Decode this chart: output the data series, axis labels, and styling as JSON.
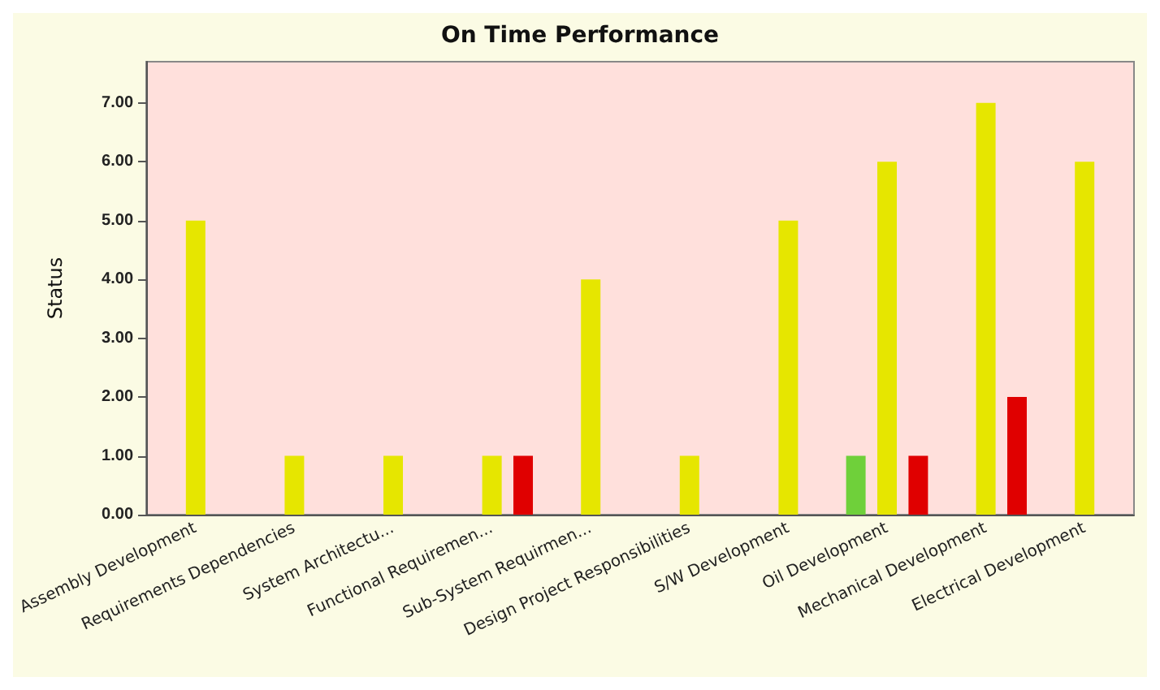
{
  "chart_data": {
    "type": "bar",
    "title": "On Time Performance",
    "ylabel": "Status",
    "categories": [
      "Assembly Development",
      "Requirements Dependencies",
      "System Architectu...",
      "Functional Requiremen...",
      "Sub-System Requirmen...",
      "Design Project Responsibilities",
      "S/W Development",
      "Oil Development",
      "Mechanical Development",
      "Electrical Development"
    ],
    "series": [
      {
        "color": "#6fd03a",
        "values": [
          null,
          null,
          null,
          null,
          null,
          null,
          null,
          1,
          null,
          null
        ]
      },
      {
        "color": "#e6e600",
        "values": [
          5,
          1,
          1,
          1,
          4,
          1,
          5,
          6,
          7,
          6
        ]
      },
      {
        "color": "#e00000",
        "values": [
          null,
          null,
          null,
          1,
          null,
          null,
          null,
          1,
          2,
          null
        ]
      }
    ],
    "ylim": [
      0,
      7.7
    ],
    "yticks": [
      {
        "value": 0,
        "label": "0.00"
      },
      {
        "value": 1,
        "label": "1.00"
      },
      {
        "value": 2,
        "label": "2.00"
      },
      {
        "value": 3,
        "label": "3.00"
      },
      {
        "value": 4,
        "label": "4.00"
      },
      {
        "value": 5,
        "label": "5.00"
      },
      {
        "value": 6,
        "label": "6.00"
      },
      {
        "value": 7,
        "label": "7.00"
      }
    ],
    "grid": false
  }
}
